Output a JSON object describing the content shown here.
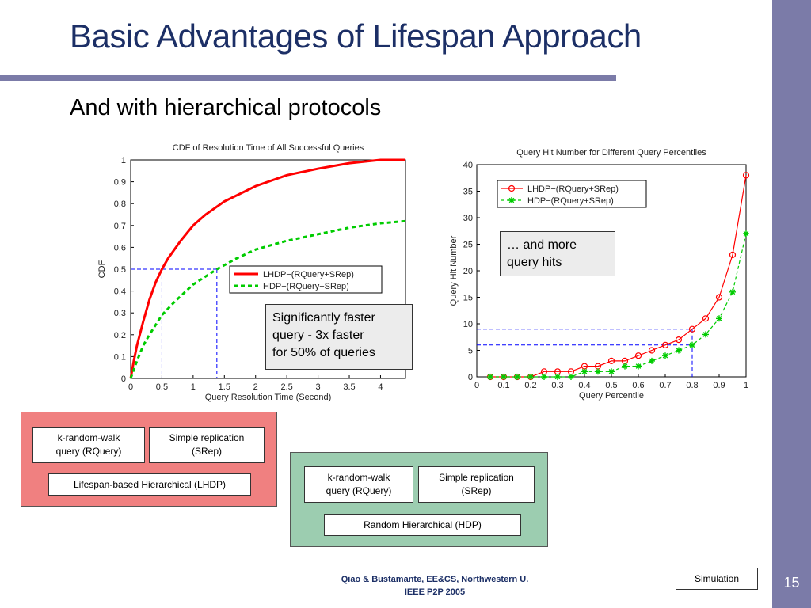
{
  "slide": {
    "title": "Basic Advantages of Lifespan Approach",
    "subtitle": "And with hierarchical protocols",
    "page_number": "15",
    "footer_line1": "Qiao & Bustamante, EE&CS, Northwestern U.",
    "footer_line2": "IEEE P2P 2005",
    "simulation_button": "Simulation",
    "callout_left": [
      "Significantly faster",
      "query -  3x faster",
      "for 50% of queries"
    ],
    "callout_right": [
      "… and more",
      "query hits"
    ],
    "lhdp_panel": {
      "box1": [
        "k-random-walk",
        "query (RQuery)"
      ],
      "box2": [
        "Simple replication",
        "(SRep)"
      ],
      "bottom": "Lifespan-based Hierarchical (LHDP)"
    },
    "hdp_panel": {
      "box1": [
        "k-random-walk",
        "query (RQuery)"
      ],
      "box2": [
        "Simple replication",
        "(SRep)"
      ],
      "bottom": "Random Hierarchical (HDP)"
    }
  },
  "colors": {
    "title": "#1c2f66",
    "accent_bar": "#7b7ba8",
    "lhdp_panel": "#f08080",
    "hdp_panel": "#9ccdb0",
    "series_red": "#ff0000",
    "series_green": "#00cc00",
    "guide_blue": "#0000ff"
  },
  "chart_data": [
    {
      "type": "line",
      "title": "CDF of Resolution Time of All Successful Queries",
      "xlabel": "Query Resolution Time (Second)",
      "ylabel": "CDF",
      "xlim": [
        0,
        4.4
      ],
      "ylim": [
        0,
        1
      ],
      "xticks": [
        "0",
        "0.5",
        "1",
        "1.5",
        "2",
        "2.5",
        "3",
        "3.5",
        "4"
      ],
      "yticks": [
        "0",
        "0.1",
        "0.2",
        "0.3",
        "0.4",
        "0.5",
        "0.6",
        "0.7",
        "0.8",
        "0.9",
        "1"
      ],
      "legend_position": "center-right",
      "series": [
        {
          "name": "LHDP−(RQuery+SRep)",
          "x": [
            0,
            0.05,
            0.1,
            0.2,
            0.3,
            0.4,
            0.5,
            0.6,
            0.8,
            1.0,
            1.2,
            1.5,
            2.0,
            2.5,
            3.0,
            3.5,
            4.0,
            4.4
          ],
          "values": [
            0,
            0.08,
            0.15,
            0.26,
            0.36,
            0.44,
            0.5,
            0.55,
            0.63,
            0.7,
            0.75,
            0.81,
            0.88,
            0.93,
            0.96,
            0.985,
            1.0,
            1.0
          ]
        },
        {
          "name": "HDP−(RQuery+SRep)",
          "x": [
            0,
            0.05,
            0.1,
            0.2,
            0.3,
            0.5,
            0.7,
            1.0,
            1.38,
            1.7,
            2.0,
            2.5,
            3.0,
            3.5,
            4.0,
            4.4
          ],
          "values": [
            0,
            0.04,
            0.08,
            0.15,
            0.2,
            0.29,
            0.35,
            0.43,
            0.5,
            0.55,
            0.59,
            0.63,
            0.66,
            0.69,
            0.71,
            0.72
          ]
        }
      ],
      "guides": {
        "y": 0.5,
        "x": [
          0.5,
          1.38
        ]
      }
    },
    {
      "type": "line",
      "title": "Query Hit Number for Different Query Percentiles",
      "xlabel": "Query Percentile",
      "ylabel": "Query Hit Number",
      "xlim": [
        0,
        1
      ],
      "ylim": [
        0,
        40
      ],
      "xticks": [
        "0",
        "0.1",
        "0.2",
        "0.3",
        "0.4",
        "0.5",
        "0.6",
        "0.7",
        "0.8",
        "0.9",
        "1"
      ],
      "yticks": [
        "0",
        "5",
        "10",
        "15",
        "20",
        "25",
        "30",
        "35",
        "40"
      ],
      "legend_position": "top-left",
      "series": [
        {
          "name": "LHDP−(RQuery+SRep)",
          "marker": "circle",
          "x": [
            0.05,
            0.1,
            0.15,
            0.2,
            0.25,
            0.3,
            0.35,
            0.4,
            0.45,
            0.5,
            0.55,
            0.6,
            0.65,
            0.7,
            0.75,
            0.8,
            0.85,
            0.9,
            0.95,
            1.0
          ],
          "values": [
            0,
            0,
            0,
            0,
            1,
            1,
            1,
            2,
            2,
            3,
            3,
            4,
            5,
            6,
            7,
            9,
            11,
            15,
            23,
            38
          ]
        },
        {
          "name": "HDP−(RQuery+SRep)",
          "marker": "star",
          "x": [
            0.05,
            0.1,
            0.15,
            0.2,
            0.25,
            0.3,
            0.35,
            0.4,
            0.45,
            0.5,
            0.55,
            0.6,
            0.65,
            0.7,
            0.75,
            0.8,
            0.85,
            0.9,
            0.95,
            1.0
          ],
          "values": [
            0,
            0,
            0,
            0,
            0,
            0,
            0,
            1,
            1,
            1,
            2,
            2,
            3,
            4,
            5,
            6,
            8,
            11,
            16,
            27
          ]
        }
      ],
      "guides": {
        "y": [
          9,
          6
        ],
        "x": 0.8
      }
    }
  ]
}
